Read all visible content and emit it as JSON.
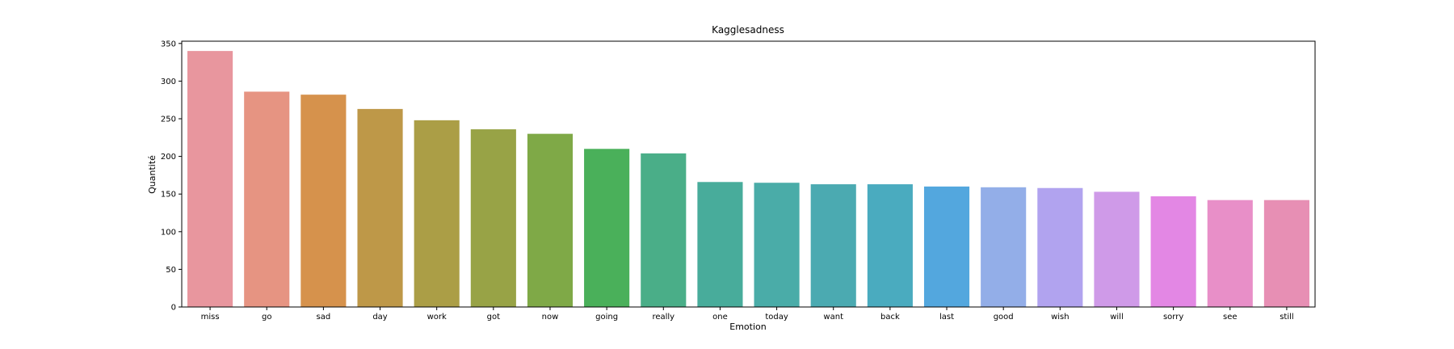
{
  "chart_data": {
    "type": "bar",
    "title": "Kagglesadness",
    "xlabel": "Emotion",
    "ylabel": "Quantité",
    "categories": [
      "miss",
      "go",
      "sad",
      "day",
      "work",
      "got",
      "now",
      "going",
      "really",
      "one",
      "today",
      "want",
      "back",
      "last",
      "good",
      "wish",
      "will",
      "sorry",
      "see",
      "still"
    ],
    "values": [
      340,
      286,
      282,
      263,
      248,
      236,
      230,
      210,
      204,
      166,
      165,
      163,
      163,
      160,
      159,
      158,
      153,
      147,
      142,
      142
    ],
    "colors": [
      "#e8969e",
      "#e69482",
      "#d6924c",
      "#be9848",
      "#ab9e46",
      "#98a346",
      "#7fa947",
      "#4ab05a",
      "#4aae88",
      "#48ac9b",
      "#4aaca8",
      "#4baab1",
      "#4aabbf",
      "#53a7de",
      "#93aee8",
      "#b1a3ef",
      "#cf9ae8",
      "#e387e4",
      "#e88fc8",
      "#e78fb4"
    ],
    "ylim": [
      0,
      353
    ],
    "yticks": [
      0,
      50,
      100,
      150,
      200,
      250,
      300,
      350
    ],
    "grid": false,
    "legend": "none"
  }
}
